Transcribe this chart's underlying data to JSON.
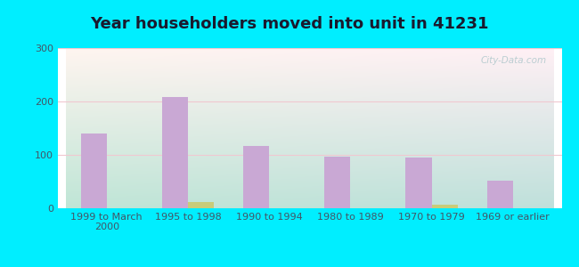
{
  "title": "Year householders moved into unit in 41231",
  "categories": [
    "1999 to March\n2000",
    "1995 to 1998",
    "1990 to 1994",
    "1980 to 1989",
    "1970 to 1979",
    "1969 or earlier"
  ],
  "white_non_hispanic": [
    140,
    209,
    117,
    96,
    95,
    52
  ],
  "two_or_more_races": [
    0,
    12,
    0,
    0,
    7,
    0
  ],
  "bar_color_white": "#c9a8d4",
  "bar_color_two": "#c8cc7a",
  "background_outer": "#00eeff",
  "background_inner_topleft": "#c8ede0",
  "background_inner_topright": "#f0f8f5",
  "background_inner_bottom": "#e8f8ee",
  "ylim": [
    0,
    300
  ],
  "yticks": [
    0,
    100,
    200,
    300
  ],
  "watermark": "City-Data.com",
  "title_fontsize": 13,
  "tick_fontsize": 8,
  "legend_fontsize": 9
}
